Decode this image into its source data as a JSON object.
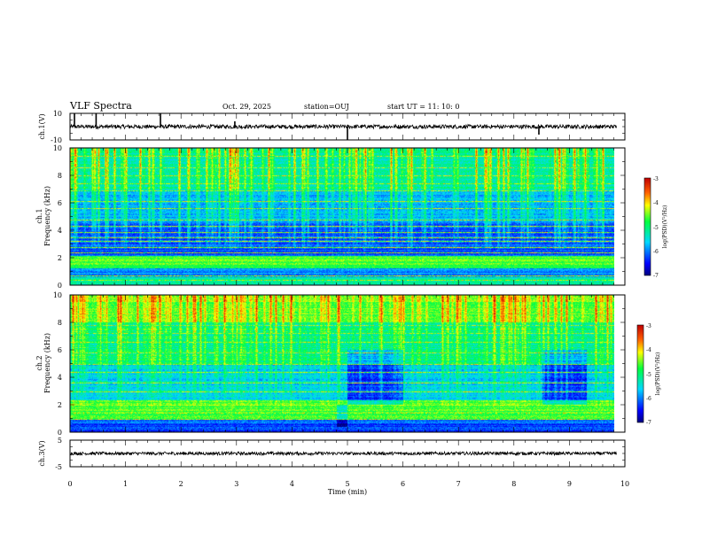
{
  "header": {
    "title": "VLF Spectra",
    "date": "Oct. 29, 2025",
    "station": "station=OUJ",
    "start": "start  UT =   11: 10: 0"
  },
  "colors": {
    "ink": "#000000",
    "spectrum_low": "#00007f",
    "spectrum_mid": "#00ff00",
    "spectrum_high": "#ff0000"
  },
  "chart_data": [
    {
      "id": "ch1_waveform",
      "type": "line",
      "ylabel": "ch.1(V)",
      "ylim": [
        -10,
        10
      ],
      "yticks": [
        "10",
        "-10"
      ],
      "baseline": 0,
      "noise_amplitude": 1.5,
      "spikes": [
        {
          "t": 0.08,
          "v": 10
        },
        {
          "t": 0.47,
          "v": 10
        },
        {
          "t": 1.63,
          "v": 10
        },
        {
          "t": 2.97,
          "v": 4
        },
        {
          "t": 5.0,
          "v": -10
        },
        {
          "t": 8.45,
          "v": -6
        }
      ]
    },
    {
      "id": "ch1_spectrum",
      "type": "heatmap",
      "ylabel_top": "ch.1",
      "ylabel": "Frequency (kHz)",
      "ylim": [
        0,
        10
      ],
      "yticks": [
        "0",
        "2",
        "4",
        "6",
        "8",
        "10"
      ],
      "colorbar": {
        "label": "log(PSD)(V²/Hz)",
        "range": [
          -7,
          -3
        ],
        "ticks": [
          "-3",
          "-4",
          "-5",
          "-6",
          "-7"
        ]
      },
      "base_levels": [
        {
          "f": [
            0,
            0.6
          ],
          "level": 0.45
        },
        {
          "f": [
            0.6,
            1.2
          ],
          "level": 0.25
        },
        {
          "f": [
            1.2,
            2.1
          ],
          "level": 0.58
        },
        {
          "f": [
            2.1,
            4.6
          ],
          "level": 0.2
        },
        {
          "f": [
            4.6,
            7.0
          ],
          "level": 0.32
        },
        {
          "f": [
            7.0,
            10.0
          ],
          "level": 0.44
        }
      ],
      "horizontal_lines_khz": [
        0.4,
        0.7,
        2.4,
        2.8,
        3.2,
        3.5,
        3.9,
        4.3,
        4.8,
        5.6,
        6.1,
        6.9,
        7.4,
        8.0,
        8.6,
        9.4
      ]
    },
    {
      "id": "ch2_spectrum",
      "type": "heatmap",
      "ylabel_top": "ch.2",
      "ylabel": "Frequency (kHz)",
      "ylim": [
        0,
        10
      ],
      "yticks": [
        "0",
        "2",
        "4",
        "6",
        "8",
        "10"
      ],
      "colorbar": {
        "label": "log(PSD)(V²/Hz)",
        "range": [
          -7,
          -3
        ],
        "ticks": [
          "-3",
          "-4",
          "-5",
          "-6",
          "-7"
        ]
      },
      "base_levels": [
        {
          "f": [
            0,
            1.0
          ],
          "level": 0.2
        },
        {
          "f": [
            1.0,
            2.3
          ],
          "level": 0.6
        },
        {
          "f": [
            2.3,
            5.0
          ],
          "level": 0.34
        },
        {
          "f": [
            5.0,
            8.0
          ],
          "level": 0.46
        },
        {
          "f": [
            8.0,
            10.0
          ],
          "level": 0.6
        }
      ],
      "dark_patches": [
        {
          "t": [
            5.0,
            6.0
          ],
          "f": [
            2.0,
            6.0
          ]
        },
        {
          "t": [
            8.5,
            9.3
          ],
          "f": [
            2.0,
            6.0
          ]
        },
        {
          "t": [
            4.8,
            5.0
          ],
          "f": [
            0.4,
            2.0
          ]
        }
      ],
      "horizontal_lines_khz": [
        1.0,
        1.4,
        3.0,
        3.6,
        4.4,
        5.0,
        5.8,
        6.6,
        7.2,
        7.8
      ]
    },
    {
      "id": "ch3_waveform",
      "type": "line",
      "ylabel": "ch.3(V)",
      "ylim": [
        -5,
        5
      ],
      "yticks": [
        "5",
        "-5"
      ],
      "baseline": 0,
      "noise_amplitude": 0.6
    }
  ],
  "x_axis": {
    "label": "Time (min)",
    "range": [
      0,
      10
    ],
    "data_end": 9.85,
    "ticks": [
      "0",
      "1",
      "2",
      "3",
      "4",
      "5",
      "6",
      "7",
      "8",
      "9",
      "10"
    ]
  }
}
